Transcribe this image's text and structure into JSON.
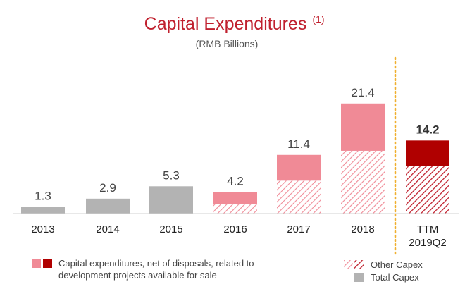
{
  "chart_data": {
    "type": "bar",
    "title": "Capital Expenditures",
    "title_note": "(1)",
    "subtitle": "(RMB Billions)",
    "categories": [
      "2013",
      "2014",
      "2015",
      "2016",
      "2017",
      "2018",
      "TTM 2019Q2"
    ],
    "series": [
      {
        "name": "Total Capex",
        "values": [
          1.3,
          2.9,
          5.3,
          null,
          null,
          null,
          null
        ]
      },
      {
        "name": "Other Capex",
        "values": [
          null,
          null,
          null,
          1.8,
          6.4,
          12.2,
          9.3
        ]
      },
      {
        "name": "Capital expenditures, net of disposals, related to development projects available for sale",
        "values": [
          null,
          null,
          null,
          2.4,
          5.0,
          9.2,
          4.9
        ]
      }
    ],
    "totals": [
      1.3,
      2.9,
      5.3,
      4.2,
      11.4,
      21.4,
      14.2
    ],
    "total_labels": [
      "1.3",
      "2.9",
      "5.3",
      "4.2",
      "11.4",
      "21.4",
      "14.2"
    ],
    "ylim": [
      0,
      24
    ],
    "grid": false,
    "legend_position": "bottom",
    "colors": {
      "total": "#b3b3b3",
      "dev_projects": "#f08a96",
      "dev_projects_ttm": "#b00000",
      "other_hatch": "#f08a96",
      "other_hatch_ttm": "#c0202e",
      "divider": "#f0b030",
      "title": "#c0202e"
    }
  },
  "legend": {
    "dev_projects_line1": "Capital expenditures, net of disposals, related to",
    "dev_projects_line2": "development projects available for sale",
    "other_capex": "Other Capex",
    "total_capex": "Total Capex"
  }
}
